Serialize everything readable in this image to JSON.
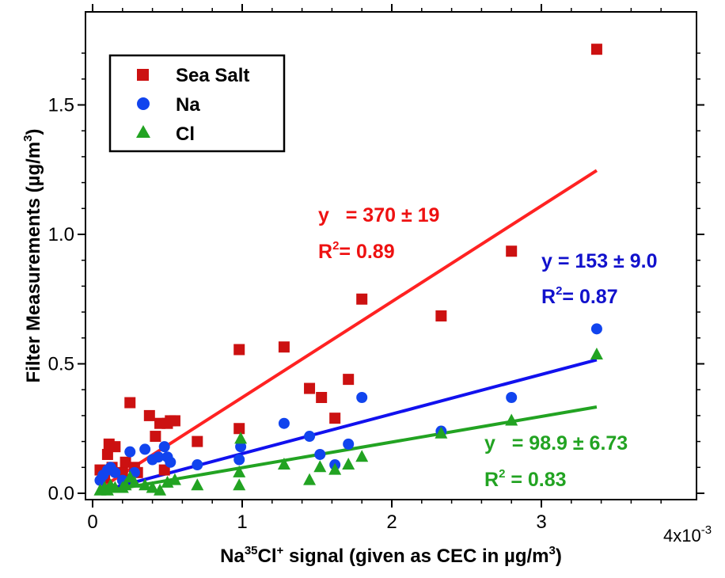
{
  "chart_data": {
    "type": "scatter",
    "xlabel": {
      "pre": "Na",
      "sup1": "35",
      "mid": "Cl",
      "sup2": "+",
      "post": " signal (given as CEC in µg/m",
      "sup3": "3",
      "end": ")"
    },
    "ylabel": {
      "pre": "Filter Measurements (µg/m",
      "sup": "3",
      "end": ")"
    },
    "x_multiplier_label": {
      "base": "4x10",
      "exp": "-3"
    },
    "xlim": [
      0,
      0.004
    ],
    "ylim": [
      -0.025,
      1.8
    ],
    "x_ticks": [
      0,
      0.001,
      0.002,
      0.003
    ],
    "x_tick_labels": [
      "0",
      "1",
      "2",
      "3"
    ],
    "y_ticks": [
      0,
      0.5,
      1.0,
      1.5
    ],
    "y_tick_labels": [
      "0.0",
      "0.5",
      "1.0",
      "1.5"
    ],
    "legend_position": "top-left",
    "series": [
      {
        "name": "Sea Salt",
        "marker": "square",
        "color": "#cc1111",
        "line_color": "#ff2222",
        "fit": {
          "slope": 370,
          "intercept": 0.0,
          "x_range": [
            5e-05,
            0.00337
          ]
        },
        "x": [
          5e-05,
          8e-05,
          0.0001,
          0.00011,
          0.00013,
          0.00015,
          0.0002,
          0.00022,
          0.00025,
          0.00028,
          0.0003,
          0.00038,
          0.00042,
          0.00045,
          0.00048,
          0.0005,
          0.00052,
          0.00055,
          0.0007,
          0.00098,
          0.00098,
          0.00128,
          0.00145,
          0.00153,
          0.00162,
          0.00171,
          0.0018,
          0.00233,
          0.0028,
          0.00337
        ],
        "y": [
          0.09,
          0.06,
          0.15,
          0.19,
          0.1,
          0.18,
          0.08,
          0.12,
          0.35,
          0.1,
          0.08,
          0.3,
          0.22,
          0.27,
          0.09,
          0.27,
          0.28,
          0.28,
          0.2,
          0.25,
          0.555,
          0.565,
          0.405,
          0.37,
          0.29,
          0.44,
          0.75,
          0.685,
          0.935,
          1.715
        ]
      },
      {
        "name": "Na",
        "marker": "circle",
        "color": "#1144ee",
        "line_color": "#1111ee",
        "fit": {
          "slope": 153,
          "intercept": 0.0,
          "x_range": [
            5e-05,
            0.00337
          ]
        },
        "x": [
          5e-05,
          7e-05,
          0.0001,
          0.00012,
          0.00015,
          0.0002,
          0.00025,
          0.00028,
          0.00035,
          0.0004,
          0.00044,
          0.00048,
          0.0005,
          0.00052,
          0.0007,
          0.00098,
          0.00099,
          0.00128,
          0.00145,
          0.00152,
          0.00162,
          0.00171,
          0.0018,
          0.00233,
          0.0028,
          0.00337
        ],
        "y": [
          0.05,
          0.07,
          0.09,
          0.1,
          0.08,
          0.05,
          0.16,
          0.08,
          0.17,
          0.13,
          0.14,
          0.18,
          0.14,
          0.12,
          0.11,
          0.13,
          0.18,
          0.27,
          0.22,
          0.15,
          0.11,
          0.19,
          0.37,
          0.24,
          0.37,
          0.635
        ]
      },
      {
        "name": "Cl",
        "marker": "triangle",
        "color": "#22a322",
        "line_color": "#22a322",
        "fit": {
          "slope": 98.9,
          "intercept": 0.0,
          "x_range": [
            5e-05,
            0.00337
          ]
        },
        "x": [
          5e-05,
          8e-05,
          0.0001,
          0.00012,
          0.00015,
          0.0002,
          0.00022,
          0.00025,
          0.00028,
          0.00035,
          0.0004,
          0.00045,
          0.0005,
          0.00055,
          0.0007,
          0.00098,
          0.00098,
          0.00099,
          0.00128,
          0.00145,
          0.00152,
          0.00162,
          0.00171,
          0.0018,
          0.00233,
          0.0028,
          0.00337
        ],
        "y": [
          0.01,
          0.02,
          0.01,
          0.03,
          0.02,
          0.02,
          0.03,
          0.06,
          0.04,
          0.03,
          0.02,
          0.01,
          0.04,
          0.05,
          0.03,
          0.03,
          0.08,
          0.21,
          0.11,
          0.05,
          0.1,
          0.09,
          0.11,
          0.14,
          0.23,
          0.28,
          0.535
        ]
      }
    ],
    "annotations": [
      {
        "series": "Sea Salt",
        "color": "#ee1111",
        "line1": "y   = 370 ± 19",
        "r2_pre": "R",
        "r2_sup": "2",
        "r2_post": "= 0.89"
      },
      {
        "series": "Na",
        "color": "#1111cc",
        "line1": "y = 153 ± 9.0",
        "r2_pre": "R",
        "r2_sup": "2",
        "r2_post": "= 0.87"
      },
      {
        "series": "Cl",
        "color": "#22a322",
        "line1": "y   = 98.9 ± 6.73",
        "r2_pre": "R",
        "r2_sup": "2",
        "r2_post": " = 0.83"
      }
    ]
  }
}
